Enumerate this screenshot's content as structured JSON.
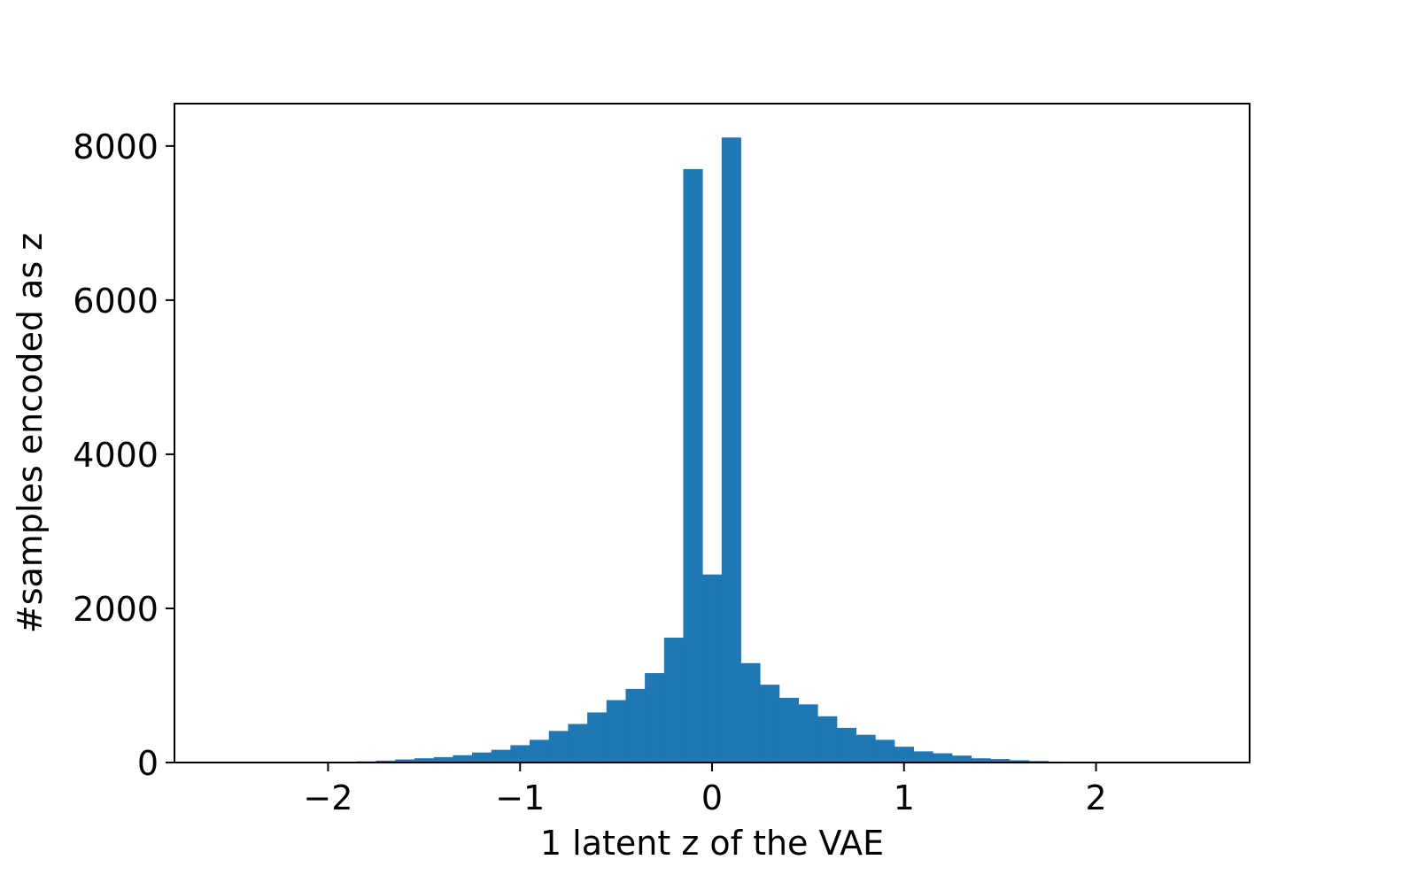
{
  "chart_data": {
    "type": "bar",
    "subtype": "histogram",
    "xlabel": "1 latent z of the VAE",
    "ylabel": "#samples encoded as z",
    "xlim": [
      -2.8,
      2.8
    ],
    "ylim": [
      0,
      8550
    ],
    "xticks": [
      {
        "value": -2,
        "label": "−2"
      },
      {
        "value": -1,
        "label": "−1"
      },
      {
        "value": 0,
        "label": "0"
      },
      {
        "value": 1,
        "label": "1"
      },
      {
        "value": 2,
        "label": "2"
      }
    ],
    "yticks": [
      {
        "value": 0,
        "label": "0"
      },
      {
        "value": 2000,
        "label": "2000"
      },
      {
        "value": 4000,
        "label": "4000"
      },
      {
        "value": 6000,
        "label": "6000"
      },
      {
        "value": 8000,
        "label": "8000"
      }
    ],
    "bin_width": 0.1,
    "bin_start": -1.85,
    "values": [
      15,
      25,
      40,
      55,
      70,
      95,
      130,
      165,
      225,
      295,
      410,
      500,
      650,
      810,
      955,
      1160,
      1620,
      7700,
      2440,
      8110,
      1290,
      1010,
      840,
      755,
      600,
      450,
      360,
      295,
      205,
      145,
      120,
      90,
      55,
      45,
      30,
      20,
      12
    ],
    "bar_color": "#1f77b4",
    "grid": false,
    "legend": "none"
  }
}
